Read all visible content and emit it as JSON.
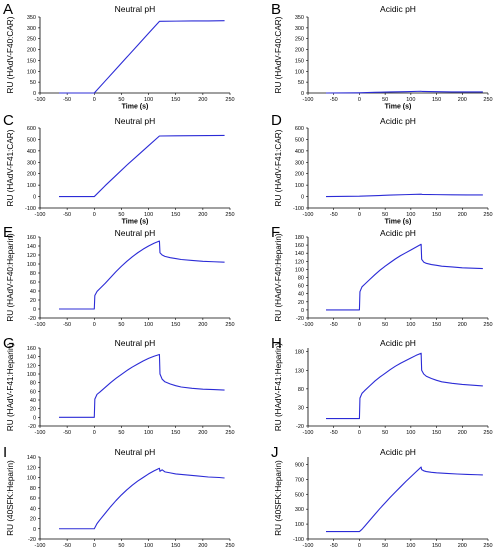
{
  "chart_data": [
    {
      "panel": "A",
      "type": "line",
      "title": "Neutral pH",
      "xlabel": "Time (s)",
      "ylabel": "RU (HAdV-F40:CAR)",
      "xlim": [
        -100,
        250
      ],
      "ylim": [
        0,
        350
      ],
      "xticks": [
        "-100",
        "-50",
        "0",
        "50",
        "100",
        "150",
        "200",
        "250"
      ],
      "yticks": [
        "0",
        "50",
        "100",
        "150",
        "200",
        "250",
        "300",
        "350"
      ],
      "color": "#2b2bd6",
      "series": [
        {
          "x": [
            -65,
            0,
            20,
            40,
            60,
            80,
            100,
            120,
            150,
            180,
            210,
            240
          ],
          "y": [
            0,
            0,
            55,
            110,
            165,
            220,
            275,
            330,
            331,
            332,
            332,
            333
          ]
        }
      ]
    },
    {
      "panel": "B",
      "type": "line",
      "title": "Acidic pH",
      "xlabel": "Time (s)",
      "ylabel": "RU (HAdV-F40:CAR)",
      "xlim": [
        -100,
        250
      ],
      "ylim": [
        0,
        350
      ],
      "xticks": [
        "-100",
        "-50",
        "0",
        "50",
        "100",
        "150",
        "200",
        "250"
      ],
      "yticks": [
        "0",
        "50",
        "100",
        "150",
        "200",
        "250",
        "300",
        "350"
      ],
      "color": "#2b2bd6",
      "series": [
        {
          "x": [
            -65,
            0,
            30,
            60,
            90,
            120,
            122,
            150,
            180,
            210,
            240
          ],
          "y": [
            0,
            1,
            3,
            5,
            6,
            8,
            7,
            6,
            5,
            5,
            5
          ]
        }
      ]
    },
    {
      "panel": "C",
      "type": "line",
      "title": "Neutral pH",
      "xlabel": "Time (s)",
      "ylabel": "RU (HAdV-F41:CAR)",
      "xlim": [
        -100,
        250
      ],
      "ylim": [
        -100,
        600
      ],
      "xticks": [
        "-100",
        "-50",
        "0",
        "50",
        "100",
        "150",
        "200",
        "250"
      ],
      "yticks": [
        "-100",
        "0",
        "100",
        "200",
        "300",
        "400",
        "500",
        "600"
      ],
      "color": "#2b2bd6",
      "series": [
        {
          "x": [
            -65,
            0,
            20,
            40,
            60,
            80,
            100,
            120,
            150,
            180,
            210,
            240
          ],
          "y": [
            0,
            0,
            95,
            185,
            275,
            360,
            445,
            530,
            532,
            533,
            534,
            535
          ]
        }
      ]
    },
    {
      "panel": "D",
      "type": "line",
      "title": "Acidic pH",
      "xlabel": "Time (s)",
      "ylabel": "RU (HAdV-F41:CAR)",
      "xlim": [
        -100,
        250
      ],
      "ylim": [
        -100,
        600
      ],
      "xticks": [
        "-100",
        "-50",
        "0",
        "50",
        "100",
        "150",
        "200",
        "250"
      ],
      "yticks": [
        "-100",
        "0",
        "100",
        "200",
        "300",
        "400",
        "500",
        "600"
      ],
      "color": "#2b2bd6",
      "series": [
        {
          "x": [
            -65,
            0,
            30,
            60,
            90,
            120,
            122,
            150,
            180,
            210,
            240
          ],
          "y": [
            0,
            3,
            8,
            13,
            17,
            21,
            19,
            17,
            15,
            14,
            14
          ]
        }
      ]
    },
    {
      "panel": "E",
      "type": "line",
      "title": "Neutral pH",
      "xlabel": "",
      "ylabel": "RU (HAdV-F40:Heparin)",
      "xlim": [
        -100,
        250
      ],
      "ylim": [
        -20,
        160
      ],
      "xticks": [
        "-100",
        "-50",
        "0",
        "50",
        "100",
        "150",
        "200",
        "250"
      ],
      "yticks": [
        "-20",
        "0",
        "20",
        "40",
        "60",
        "80",
        "100",
        "120",
        "140",
        "160"
      ],
      "color": "#2b2bd6",
      "series": [
        {
          "x": [
            -65,
            0,
            1,
            5,
            10,
            20,
            30,
            40,
            50,
            60,
            70,
            80,
            90,
            100,
            110,
            120,
            121,
            125,
            130,
            140,
            150,
            160,
            180,
            200,
            220,
            240
          ],
          "y": [
            0,
            0,
            30,
            39,
            45,
            57,
            70,
            83,
            95,
            106,
            116,
            125,
            133,
            140,
            146,
            151,
            125,
            120,
            117,
            114,
            112,
            110,
            108,
            106,
            105,
            104
          ]
        }
      ]
    },
    {
      "panel": "F",
      "type": "line",
      "title": "Acidic pH",
      "xlabel": "",
      "ylabel": "RU (HAdV-F40:Heparin)",
      "xlim": [
        -100,
        250
      ],
      "ylim": [
        -20,
        180
      ],
      "xticks": [
        "-100",
        "-50",
        "0",
        "50",
        "100",
        "150",
        "200",
        "250"
      ],
      "yticks": [
        "-20",
        "0",
        "20",
        "40",
        "60",
        "80",
        "100",
        "120",
        "140",
        "160",
        "180"
      ],
      "color": "#2b2bd6",
      "series": [
        {
          "x": [
            -65,
            0,
            1,
            5,
            10,
            20,
            30,
            40,
            50,
            60,
            70,
            80,
            90,
            100,
            110,
            120,
            121,
            125,
            130,
            140,
            150,
            160,
            180,
            200,
            220,
            240
          ],
          "y": [
            0,
            0,
            45,
            57,
            63,
            75,
            87,
            98,
            108,
            117,
            126,
            134,
            141,
            148,
            155,
            162,
            125,
            118,
            115,
            112,
            110,
            108,
            106,
            104,
            103,
            102
          ]
        }
      ]
    },
    {
      "panel": "G",
      "type": "line",
      "title": "Neutral pH",
      "xlabel": "",
      "ylabel": "RU (HAdV-F41:Heparin)",
      "xlim": [
        -100,
        250
      ],
      "ylim": [
        -20,
        160
      ],
      "xticks": [
        "-100",
        "-50",
        "0",
        "50",
        "100",
        "150",
        "200",
        "250"
      ],
      "yticks": [
        "-20",
        "0",
        "20",
        "40",
        "60",
        "80",
        "100",
        "120",
        "140",
        "160"
      ],
      "color": "#2b2bd6",
      "series": [
        {
          "x": [
            -65,
            0,
            1,
            5,
            10,
            20,
            30,
            40,
            50,
            60,
            70,
            80,
            90,
            100,
            110,
            120,
            121,
            125,
            130,
            140,
            150,
            160,
            180,
            200,
            220,
            240
          ],
          "y": [
            0,
            0,
            42,
            53,
            58,
            69,
            80,
            90,
            99,
            108,
            116,
            123,
            130,
            136,
            141,
            145,
            100,
            88,
            82,
            77,
            73,
            70,
            67,
            65,
            64,
            63
          ]
        }
      ]
    },
    {
      "panel": "H",
      "type": "line",
      "title": "Acidic pH",
      "xlabel": "",
      "ylabel": "RU (HAdV-F41:Heparin)",
      "xlim": [
        -100,
        250
      ],
      "ylim": [
        -20,
        190
      ],
      "xticks": [
        "-100",
        "-50",
        "0",
        "50",
        "100",
        "150",
        "200",
        "250"
      ],
      "yticks": [
        "-20",
        "30",
        "80",
        "130",
        "180"
      ],
      "color": "#2b2bd6",
      "series": [
        {
          "x": [
            -65,
            0,
            1,
            5,
            10,
            20,
            30,
            40,
            50,
            60,
            70,
            80,
            90,
            100,
            110,
            120,
            121,
            125,
            130,
            140,
            150,
            160,
            180,
            200,
            220,
            240
          ],
          "y": [
            0,
            0,
            55,
            68,
            75,
            88,
            101,
            112,
            122,
            132,
            141,
            149,
            156,
            163,
            170,
            176,
            130,
            120,
            114,
            108,
            103,
            99,
            95,
            92,
            90,
            88
          ]
        }
      ]
    },
    {
      "panel": "I",
      "type": "line",
      "title": "",
      "xlabel": "",
      "ylabel": "RU (40SFK:Heparin)",
      "xlim": [
        -100,
        250
      ],
      "ylim": [
        -20,
        140
      ],
      "xticks": [
        "-100",
        "-50",
        "0",
        "50",
        "100",
        "150",
        "200",
        "250"
      ],
      "yticks": [
        "-20",
        "0",
        "20",
        "40",
        "60",
        "80",
        "100",
        "120",
        "140"
      ],
      "color": "#2b2bd6",
      "series": [
        {
          "x": [
            -65,
            0,
            5,
            10,
            20,
            30,
            40,
            50,
            60,
            70,
            80,
            90,
            100,
            110,
            120,
            121,
            125,
            130,
            140,
            150,
            170,
            190,
            210,
            230,
            240
          ],
          "y": [
            0,
            0,
            10,
            17,
            30,
            43,
            55,
            66,
            76,
            85,
            93,
            100,
            107,
            113,
            118,
            112,
            115,
            111,
            109,
            107,
            105,
            103,
            101,
            100,
            99
          ]
        }
      ]
    },
    {
      "panel": "J",
      "type": "line",
      "title": "Acidic pH",
      "xlabel": "",
      "ylabel": "RU (40SFK:Heparin)",
      "xlim": [
        -100,
        250
      ],
      "ylim": [
        -100,
        1000
      ],
      "xticks": [
        "-100",
        "-50",
        "0",
        "50",
        "100",
        "150",
        "200",
        "250"
      ],
      "yticks": [
        "-100",
        "100",
        "300",
        "500",
        "700",
        "900"
      ],
      "color": "#2b2bd6",
      "series": [
        {
          "x": [
            -65,
            0,
            5,
            10,
            20,
            30,
            40,
            50,
            60,
            70,
            80,
            90,
            100,
            110,
            120,
            121,
            125,
            130,
            140,
            150,
            170,
            190,
            210,
            230,
            240
          ],
          "y": [
            0,
            0,
            30,
            70,
            150,
            230,
            310,
            385,
            460,
            530,
            600,
            670,
            735,
            800,
            865,
            830,
            815,
            805,
            795,
            788,
            780,
            772,
            766,
            762,
            760
          ]
        }
      ]
    }
  ],
  "extra_titles": [
    "Neutral pH"
  ]
}
